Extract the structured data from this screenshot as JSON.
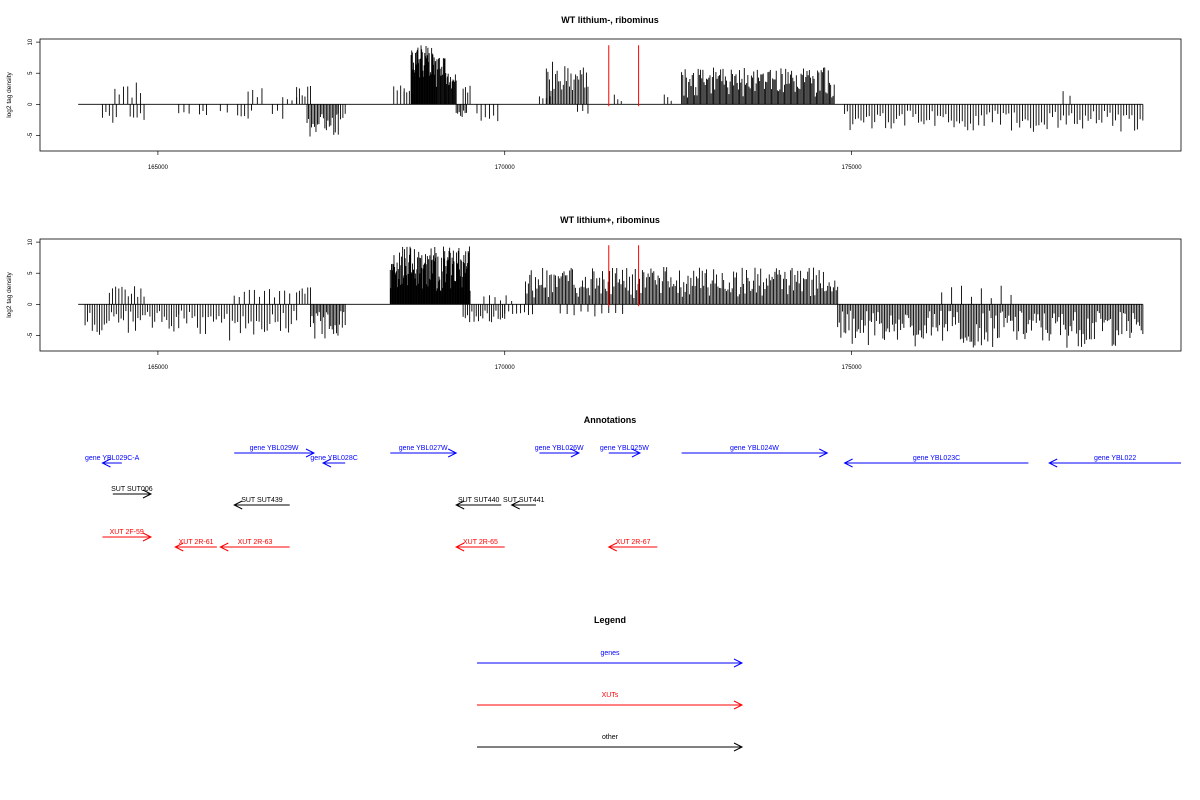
{
  "chart_data": [
    {
      "type": "bar",
      "title": "WT lithium-, ribominus",
      "ylabel": "log2 tag density",
      "xlabel": "",
      "xlim": [
        163300,
        179750
      ],
      "ylim": [
        -7.5,
        10.5
      ],
      "x_ticks": [
        165000,
        170000,
        175000
      ],
      "x_tick_labels": [
        "165000",
        "170000",
        "175000"
      ],
      "y_ticks": [
        -5,
        0,
        5,
        10
      ],
      "y_tick_labels": [
        "-5",
        "0",
        "5",
        "10"
      ],
      "grid": false,
      "baseline": {
        "from": 163850,
        "to": 179200
      },
      "markers": [
        {
          "x": 171500,
          "color": "#ff0000"
        },
        {
          "x": 171930,
          "color": "#ff0000"
        }
      ],
      "regions": [
        {
          "from": 164200,
          "to": 164400,
          "n": 5,
          "min": -3.5,
          "max": -1.0
        },
        {
          "from": 164380,
          "to": 164750,
          "n": 7,
          "min": 1.0,
          "max": 3.7
        },
        {
          "from": 164600,
          "to": 164800,
          "n": 5,
          "min": -3.2,
          "max": -1.0
        },
        {
          "from": 165300,
          "to": 165450,
          "n": 3,
          "min": -2.0,
          "max": -1.0
        },
        {
          "from": 165600,
          "to": 165700,
          "n": 3,
          "min": -2.5,
          "max": -1.0
        },
        {
          "from": 165900,
          "to": 166000,
          "n": 2,
          "min": -1.5,
          "max": -0.8
        },
        {
          "from": 166150,
          "to": 166350,
          "n": 5,
          "min": -3.0,
          "max": -1.0
        },
        {
          "from": 166300,
          "to": 166500,
          "n": 4,
          "min": 1.0,
          "max": 2.7
        },
        {
          "from": 166650,
          "to": 166800,
          "n": 3,
          "min": -2.5,
          "max": -1.0
        },
        {
          "from": 166800,
          "to": 167000,
          "n": 4,
          "min": 0.5,
          "max": 1.5
        },
        {
          "from": 167000,
          "to": 167200,
          "n": 6,
          "min": 1.0,
          "max": 3.7
        },
        {
          "from": 167150,
          "to": 167600,
          "n": 22,
          "min": -6.0,
          "max": -1.5
        },
        {
          "from": 167600,
          "to": 167700,
          "n": 4,
          "min": -2.5,
          "max": -1.0
        },
        {
          "from": 168400,
          "to": 168550,
          "n": 4,
          "min": 1.5,
          "max": 3.5
        },
        {
          "from": 168550,
          "to": 168700,
          "n": 5,
          "min": 1.0,
          "max": 2.5
        },
        {
          "from": 168650,
          "to": 169000,
          "n": 40,
          "min": 4.0,
          "max": 9.5
        },
        {
          "from": 169000,
          "to": 169150,
          "n": 14,
          "min": 2.0,
          "max": 8.5
        },
        {
          "from": 169150,
          "to": 169300,
          "n": 14,
          "min": 2.0,
          "max": 5.0
        },
        {
          "from": 169300,
          "to": 169450,
          "n": 8,
          "min": -2.5,
          "max": -1.0
        },
        {
          "from": 169400,
          "to": 169500,
          "n": 4,
          "min": 1.0,
          "max": 3.0
        },
        {
          "from": 169600,
          "to": 169900,
          "n": 6,
          "min": -3.0,
          "max": -1.0
        },
        {
          "from": 170500,
          "to": 170650,
          "n": 4,
          "min": 0.5,
          "max": 1.5
        },
        {
          "from": 170600,
          "to": 171200,
          "n": 28,
          "min": 1.0,
          "max": 7.0
        },
        {
          "from": 171050,
          "to": 171200,
          "n": 3,
          "min": -2.0,
          "max": -1.0
        },
        {
          "from": 171580,
          "to": 171680,
          "n": 3,
          "min": 0.5,
          "max": 1.8
        },
        {
          "from": 172300,
          "to": 172400,
          "n": 3,
          "min": 0.5,
          "max": 1.8
        },
        {
          "from": 172550,
          "to": 174750,
          "n": 130,
          "min": 1.0,
          "max": 6.0
        },
        {
          "from": 174900,
          "to": 179200,
          "n": 110,
          "min": -4.5,
          "max": -1.0
        },
        {
          "from": 178050,
          "to": 178150,
          "n": 2,
          "min": 1.0,
          "max": 2.3
        }
      ]
    },
    {
      "type": "bar",
      "title": "WT lithium+, ribominus",
      "ylabel": "log2 tag density",
      "xlabel": "",
      "xlim": [
        163300,
        179750
      ],
      "ylim": [
        -7.5,
        10.5
      ],
      "x_ticks": [
        165000,
        170000,
        175000
      ],
      "x_tick_labels": [
        "165000",
        "170000",
        "175000"
      ],
      "y_ticks": [
        -5,
        0,
        5,
        10
      ],
      "y_tick_labels": [
        "-5",
        "0",
        "5",
        "10"
      ],
      "grid": false,
      "baseline": {
        "from": 163850,
        "to": 179200
      },
      "markers": [
        {
          "x": 171500,
          "color": "#ff0000"
        },
        {
          "x": 171930,
          "color": "#ff0000"
        }
      ],
      "regions": [
        {
          "from": 163950,
          "to": 165300,
          "n": 40,
          "min": -5.0,
          "max": -1.0
        },
        {
          "from": 164300,
          "to": 164800,
          "n": 12,
          "min": 1.0,
          "max": 3.0
        },
        {
          "from": 165300,
          "to": 167000,
          "n": 45,
          "min": -6.0,
          "max": -1.0
        },
        {
          "from": 166100,
          "to": 166900,
          "n": 12,
          "min": 0.5,
          "max": 2.5
        },
        {
          "from": 167000,
          "to": 167200,
          "n": 6,
          "min": 1.0,
          "max": 3.0
        },
        {
          "from": 167200,
          "to": 167700,
          "n": 25,
          "min": -6.0,
          "max": -1.0
        },
        {
          "from": 168350,
          "to": 169500,
          "n": 130,
          "min": 2.0,
          "max": 9.3
        },
        {
          "from": 169400,
          "to": 170000,
          "n": 20,
          "min": -3.0,
          "max": -1.0
        },
        {
          "from": 169700,
          "to": 170100,
          "n": 6,
          "min": 0.5,
          "max": 2.0
        },
        {
          "from": 170000,
          "to": 170400,
          "n": 8,
          "min": -2.0,
          "max": -1.0
        },
        {
          "from": 170300,
          "to": 174800,
          "n": 220,
          "min": 1.0,
          "max": 6.0
        },
        {
          "from": 170800,
          "to": 171700,
          "n": 10,
          "min": -2.0,
          "max": -1.0
        },
        {
          "from": 174800,
          "to": 179200,
          "n": 190,
          "min": -7.0,
          "max": -1.0
        },
        {
          "from": 176300,
          "to": 177300,
          "n": 8,
          "min": 0.5,
          "max": 3.0
        }
      ]
    }
  ],
  "annotations": {
    "title": "Annotations",
    "features": [
      {
        "label": "gene YBL029C-A",
        "start": 164200,
        "end": 164480,
        "strand": "-",
        "row": 1,
        "color": "#0000ff"
      },
      {
        "label": "gene YBL029W",
        "start": 166100,
        "end": 167250,
        "strand": "+",
        "row": 0,
        "color": "#0000ff"
      },
      {
        "label": "gene YBL028C",
        "start": 167380,
        "end": 167700,
        "strand": "-",
        "row": 1,
        "color": "#0000ff"
      },
      {
        "label": "gene YBL027W",
        "start": 168350,
        "end": 169300,
        "strand": "+",
        "row": 0,
        "color": "#0000ff"
      },
      {
        "label": "gene YBL026W",
        "start": 170500,
        "end": 171070,
        "strand": "+",
        "row": 0,
        "color": "#0000ff"
      },
      {
        "label": "gene YBL025W",
        "start": 171500,
        "end": 171950,
        "strand": "+",
        "row": 0,
        "color": "#0000ff"
      },
      {
        "label": "gene YBL024W",
        "start": 172550,
        "end": 174650,
        "strand": "+",
        "row": 0,
        "color": "#0000ff"
      },
      {
        "label": "gene YBL023C",
        "start": 174900,
        "end": 177550,
        "strand": "-",
        "row": 1,
        "color": "#0000ff"
      },
      {
        "label": "gene YBL022",
        "start": 177850,
        "end": 179750,
        "strand": "-",
        "row": 1,
        "color": "#0000ff"
      },
      {
        "label": "SUT SUT006",
        "start": 164350,
        "end": 164900,
        "strand": "+",
        "row": 2,
        "color": "#000000"
      },
      {
        "label": "SUT SUT439",
        "start": 166100,
        "end": 166900,
        "strand": "-",
        "row": 3,
        "color": "#000000"
      },
      {
        "label": "SUT SUT440",
        "start": 169300,
        "end": 169950,
        "strand": "-",
        "row": 3,
        "color": "#000000"
      },
      {
        "label": "SUT SUT441",
        "start": 170100,
        "end": 170450,
        "strand": "-",
        "row": 3,
        "color": "#000000"
      },
      {
        "label": "XUT 2F-59",
        "start": 164200,
        "end": 164900,
        "strand": "+",
        "row": 4,
        "color": "#ff0000"
      },
      {
        "label": "XUT 2R-61",
        "start": 165250,
        "end": 165850,
        "strand": "-",
        "row": 5,
        "color": "#ff0000"
      },
      {
        "label": "XUT 2R-63",
        "start": 165900,
        "end": 166900,
        "strand": "-",
        "row": 5,
        "color": "#ff0000"
      },
      {
        "label": "XUT 2R-65",
        "start": 169300,
        "end": 170000,
        "strand": "-",
        "row": 5,
        "color": "#ff0000"
      },
      {
        "label": "XUT 2R-67",
        "start": 171500,
        "end": 172200,
        "strand": "-",
        "row": 5,
        "color": "#ff0000"
      }
    ]
  },
  "legend": {
    "title": "Legend",
    "items": [
      {
        "label": "genes",
        "color": "#0000ff"
      },
      {
        "label": "XUTs",
        "color": "#ff0000"
      },
      {
        "label": "other",
        "color": "#000000"
      }
    ]
  }
}
